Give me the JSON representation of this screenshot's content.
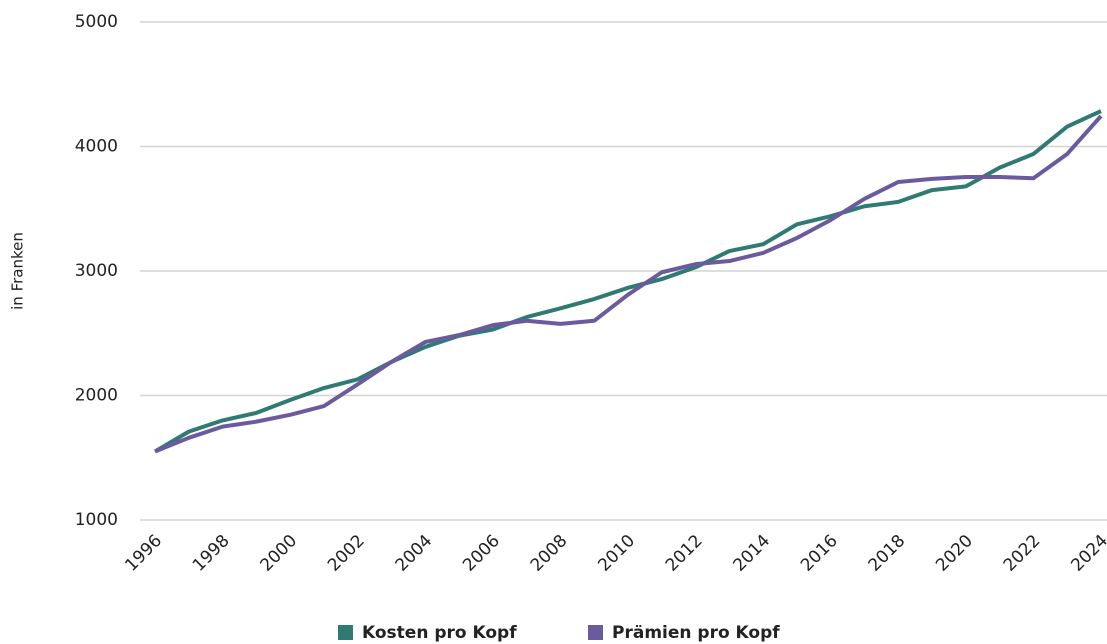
{
  "chart_data": {
    "type": "line",
    "y_label": "in Franken",
    "x": [
      1996,
      1997,
      1998,
      1999,
      2000,
      2001,
      2002,
      2003,
      2004,
      2005,
      2006,
      2007,
      2008,
      2009,
      2010,
      2011,
      2012,
      2013,
      2014,
      2015,
      2016,
      2017,
      2018,
      2019,
      2020,
      2021,
      2022,
      2023,
      2024
    ],
    "series": [
      {
        "name": "Kosten pro Kopf",
        "color": "#2f7a72",
        "values": [
          1550,
          1710,
          1800,
          1860,
          1964,
          2060,
          2130,
          2270,
          2390,
          2480,
          2530,
          2630,
          2700,
          2775,
          2865,
          2935,
          3030,
          3160,
          3215,
          3375,
          3440,
          3520,
          3555,
          3650,
          3680,
          3830,
          3940,
          4160,
          4285
        ]
      },
      {
        "name": "Prämien pro Kopf",
        "color": "#6b5b9e",
        "values": [
          1550,
          1660,
          1750,
          1790,
          1845,
          1915,
          2090,
          2270,
          2430,
          2485,
          2565,
          2600,
          2575,
          2600,
          2810,
          2990,
          3055,
          3080,
          3145,
          3265,
          3410,
          3580,
          3715,
          3740,
          3755,
          3755,
          3745,
          3940,
          4245
        ]
      }
    ],
    "xlim": [
      1996,
      2024
    ],
    "xticks": [
      1996,
      1998,
      2000,
      2002,
      2004,
      2006,
      2008,
      2010,
      2012,
      2014,
      2016,
      2018,
      2020,
      2022,
      2024
    ],
    "ylim": [
      1000,
      5000
    ],
    "yticks": [
      1000,
      2000,
      3000,
      4000,
      5000
    ],
    "grid": true,
    "legend": "bottom"
  }
}
